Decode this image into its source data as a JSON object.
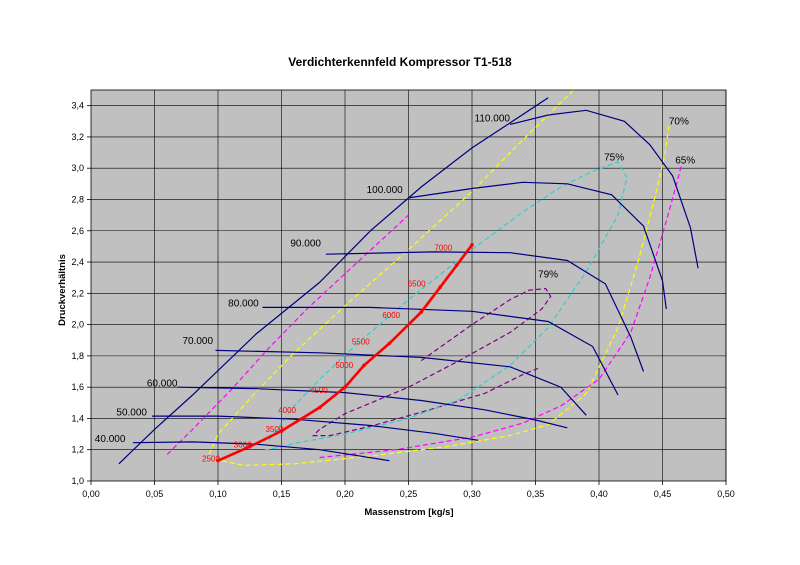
{
  "chart_data": {
    "type": "line",
    "title": "Verdichterkennfeld Kompressor T1-518",
    "xlabel": "Massenstrom [kg/s]",
    "ylabel": "Druckverhältnis",
    "xlim": [
      0.0,
      0.5
    ],
    "ylim": [
      1.0,
      3.5
    ],
    "grid": true,
    "x_ticks": [
      "0,00",
      "0,05",
      "0,10",
      "0,15",
      "0,20",
      "0,25",
      "0,30",
      "0,35",
      "0,40",
      "0,45",
      "0,50"
    ],
    "y_ticks": [
      "1,0",
      "1,2",
      "1,4",
      "1,6",
      "1,8",
      "2,0",
      "2,2",
      "2,4",
      "2,6",
      "2,8",
      "3,0",
      "3,2",
      "3,4"
    ],
    "colors": {
      "plot_bg": "#c0c0c0",
      "grid": "#000000",
      "speed": "#000080",
      "surge": "#000080",
      "op_line": "#ff0000",
      "eff79": "#800080",
      "eff75": "#33cccc",
      "eff70": "#ffff00",
      "eff65": "#ff00ff"
    },
    "surge_line": [
      [
        0.022,
        1.11
      ],
      [
        0.05,
        1.33
      ],
      [
        0.08,
        1.55
      ],
      [
        0.13,
        1.94
      ],
      [
        0.18,
        2.27
      ],
      [
        0.22,
        2.6
      ],
      [
        0.26,
        2.88
      ],
      [
        0.3,
        3.13
      ],
      [
        0.36,
        3.45
      ]
    ],
    "speed_lines": [
      {
        "label": "40.000",
        "label_x": 0.003,
        "label_y": 1.25,
        "points": [
          [
            0.033,
            1.245
          ],
          [
            0.08,
            1.25
          ],
          [
            0.13,
            1.235
          ],
          [
            0.18,
            1.2
          ],
          [
            0.235,
            1.13
          ]
        ]
      },
      {
        "label": "50.000",
        "label_x": 0.02,
        "label_y": 1.42,
        "points": [
          [
            0.048,
            1.415
          ],
          [
            0.1,
            1.415
          ],
          [
            0.16,
            1.395
          ],
          [
            0.22,
            1.355
          ],
          [
            0.27,
            1.305
          ],
          [
            0.305,
            1.26
          ]
        ]
      },
      {
        "label": "60.000",
        "label_x": 0.044,
        "label_y": 1.605,
        "points": [
          [
            0.068,
            1.6
          ],
          [
            0.13,
            1.59
          ],
          [
            0.2,
            1.565
          ],
          [
            0.26,
            1.515
          ],
          [
            0.31,
            1.455
          ],
          [
            0.35,
            1.39
          ],
          [
            0.375,
            1.34
          ]
        ]
      },
      {
        "label": "70.000",
        "label_x": 0.072,
        "label_y": 1.875,
        "points": [
          [
            0.098,
            1.835
          ],
          [
            0.18,
            1.82
          ],
          [
            0.26,
            1.79
          ],
          [
            0.33,
            1.73
          ],
          [
            0.37,
            1.6
          ],
          [
            0.39,
            1.42
          ]
        ]
      },
      {
        "label": "80.000",
        "label_x": 0.108,
        "label_y": 2.115,
        "points": [
          [
            0.135,
            2.11
          ],
          [
            0.22,
            2.11
          ],
          [
            0.3,
            2.085
          ],
          [
            0.36,
            2.02
          ],
          [
            0.395,
            1.86
          ],
          [
            0.415,
            1.55
          ]
        ]
      },
      {
        "label": "90.000",
        "label_x": 0.157,
        "label_y": 2.5,
        "points": [
          [
            0.185,
            2.45
          ],
          [
            0.27,
            2.465
          ],
          [
            0.33,
            2.46
          ],
          [
            0.375,
            2.41
          ],
          [
            0.405,
            2.26
          ],
          [
            0.425,
            1.92
          ],
          [
            0.435,
            1.7
          ]
        ]
      },
      {
        "label": "100.000",
        "label_x": 0.217,
        "label_y": 2.84,
        "points": [
          [
            0.25,
            2.81
          ],
          [
            0.3,
            2.87
          ],
          [
            0.34,
            2.91
          ],
          [
            0.375,
            2.9
          ],
          [
            0.41,
            2.83
          ],
          [
            0.435,
            2.63
          ],
          [
            0.45,
            2.28
          ],
          [
            0.453,
            2.1
          ]
        ]
      },
      {
        "label": "110.000",
        "label_x": 0.302,
        "label_y": 3.3,
        "points": [
          [
            0.33,
            3.28
          ],
          [
            0.36,
            3.34
          ],
          [
            0.39,
            3.37
          ],
          [
            0.42,
            3.3
          ],
          [
            0.44,
            3.15
          ],
          [
            0.458,
            2.95
          ],
          [
            0.472,
            2.62
          ],
          [
            0.478,
            2.36
          ]
        ]
      }
    ],
    "efficiency_contours": [
      {
        "label": "79%",
        "color_key": "eff79",
        "label_x": 0.352,
        "label_y": 2.3,
        "points": [
          [
            0.26,
            1.77
          ],
          [
            0.3,
            2.0
          ],
          [
            0.33,
            2.16
          ],
          [
            0.345,
            2.22
          ],
          [
            0.358,
            2.23
          ],
          [
            0.362,
            2.18
          ],
          [
            0.355,
            2.1
          ],
          [
            0.33,
            1.95
          ],
          [
            0.29,
            1.77
          ],
          [
            0.25,
            1.6
          ],
          [
            0.2,
            1.43
          ],
          [
            0.18,
            1.33
          ],
          [
            0.175,
            1.29
          ],
          [
            0.188,
            1.29
          ],
          [
            0.22,
            1.35
          ],
          [
            0.26,
            1.44
          ],
          [
            0.31,
            1.56
          ],
          [
            0.34,
            1.68
          ],
          [
            0.352,
            1.72
          ]
        ]
      },
      {
        "label": "75%",
        "color_key": "eff75",
        "label_x": 0.404,
        "label_y": 3.05,
        "points": [
          [
            0.14,
            1.26
          ],
          [
            0.16,
            1.48
          ],
          [
            0.18,
            1.65
          ],
          [
            0.21,
            1.88
          ],
          [
            0.25,
            2.16
          ],
          [
            0.3,
            2.48
          ],
          [
            0.34,
            2.72
          ],
          [
            0.37,
            2.88
          ],
          [
            0.395,
            2.98
          ],
          [
            0.415,
            3.04
          ],
          [
            0.422,
            2.94
          ],
          [
            0.415,
            2.7
          ],
          [
            0.39,
            2.34
          ],
          [
            0.36,
            1.98
          ],
          [
            0.33,
            1.74
          ],
          [
            0.29,
            1.52
          ],
          [
            0.25,
            1.4
          ],
          [
            0.2,
            1.3
          ],
          [
            0.16,
            1.24
          ],
          [
            0.14,
            1.2
          ],
          [
            0.137,
            1.2
          ]
        ]
      },
      {
        "label": "70%",
        "color_key": "eff70",
        "label_x": 0.455,
        "label_y": 3.28,
        "points": [
          [
            0.093,
            1.17
          ],
          [
            0.1,
            1.3
          ],
          [
            0.13,
            1.57
          ],
          [
            0.16,
            1.82
          ],
          [
            0.2,
            2.12
          ],
          [
            0.25,
            2.48
          ],
          [
            0.3,
            2.85
          ],
          [
            0.33,
            3.1
          ],
          [
            0.355,
            3.3
          ],
          [
            0.38,
            3.5
          ]
        ]
      },
      {
        "label": "70%",
        "color_key": "eff70",
        "label_x": null,
        "label_y": null,
        "points": [
          [
            0.097,
            1.14
          ],
          [
            0.12,
            1.1
          ],
          [
            0.16,
            1.11
          ],
          [
            0.22,
            1.16
          ],
          [
            0.28,
            1.22
          ],
          [
            0.33,
            1.29
          ],
          [
            0.36,
            1.36
          ],
          [
            0.39,
            1.56
          ],
          [
            0.415,
            1.98
          ],
          [
            0.43,
            2.38
          ],
          [
            0.443,
            2.78
          ],
          [
            0.452,
            3.09
          ],
          [
            0.455,
            3.27
          ]
        ]
      },
      {
        "label": "65%",
        "color_key": "eff65",
        "label_x": 0.46,
        "label_y": 3.03,
        "points": [
          [
            0.06,
            1.17
          ],
          [
            0.08,
            1.33
          ],
          [
            0.11,
            1.58
          ],
          [
            0.14,
            1.85
          ],
          [
            0.17,
            2.1
          ],
          [
            0.21,
            2.4
          ],
          [
            0.25,
            2.7
          ]
        ]
      },
      {
        "label": "65%",
        "color_key": "eff65",
        "label_x": null,
        "label_y": null,
        "points": [
          [
            0.18,
            1.15
          ],
          [
            0.24,
            1.2
          ],
          [
            0.3,
            1.28
          ],
          [
            0.34,
            1.37
          ],
          [
            0.37,
            1.48
          ],
          [
            0.4,
            1.65
          ],
          [
            0.425,
            1.95
          ],
          [
            0.44,
            2.3
          ],
          [
            0.455,
            2.72
          ],
          [
            0.465,
            3.02
          ]
        ]
      }
    ],
    "operating_line": {
      "points": [
        [
          0.1,
          1.13
        ],
        [
          0.125,
          1.22
        ],
        [
          0.15,
          1.32
        ],
        [
          0.18,
          1.47
        ],
        [
          0.2,
          1.6
        ],
        [
          0.215,
          1.74
        ],
        [
          0.235,
          1.88
        ],
        [
          0.26,
          2.08
        ],
        [
          0.275,
          2.24
        ],
        [
          0.288,
          2.38
        ],
        [
          0.3,
          2.51
        ]
      ],
      "labels": [
        {
          "text": "2500",
          "x": 0.1,
          "y": 1.13
        },
        {
          "text": "3000",
          "x": 0.125,
          "y": 1.22
        },
        {
          "text": "3500",
          "x": 0.15,
          "y": 1.32
        },
        {
          "text": "4000",
          "x": 0.16,
          "y": 1.44
        },
        {
          "text": "4500",
          "x": 0.185,
          "y": 1.57
        },
        {
          "text": "5000",
          "x": 0.205,
          "y": 1.73
        },
        {
          "text": "5500",
          "x": 0.218,
          "y": 1.88
        },
        {
          "text": "6000",
          "x": 0.242,
          "y": 2.05
        },
        {
          "text": "6500",
          "x": 0.262,
          "y": 2.25
        },
        {
          "text": "7000",
          "x": 0.283,
          "y": 2.48
        }
      ]
    }
  }
}
